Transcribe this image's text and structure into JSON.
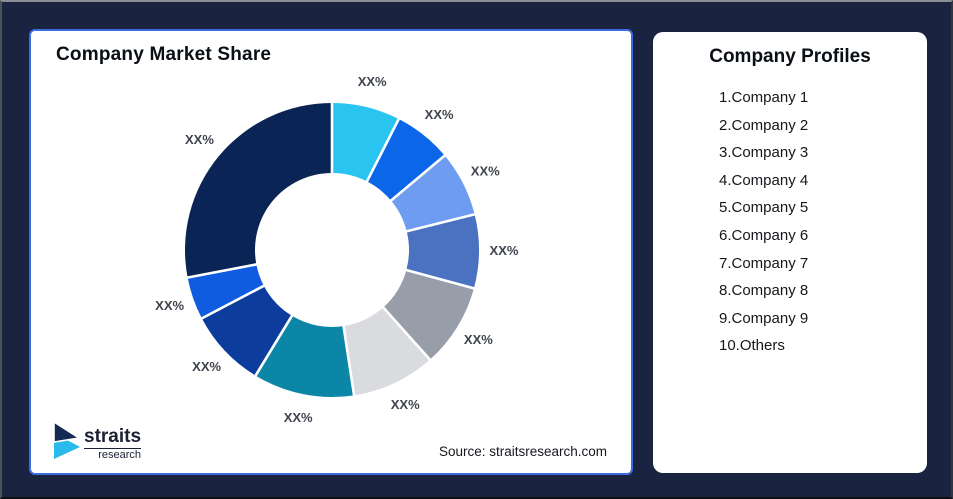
{
  "window": {
    "background": "#1a2440"
  },
  "chart_card": {
    "title": "Company Market Share",
    "source": "Source: straitsresearch.com",
    "border_color": "#3b6de0"
  },
  "logo": {
    "brand": "straits",
    "tagline": "research",
    "navy": "#132a52",
    "cyan": "#29b9ea"
  },
  "profiles_card": {
    "title": "Company Profiles",
    "items": [
      "1.Company 1",
      "2.Company 2",
      "3.Company 3",
      "4.Company 4",
      "5.Company 5",
      "6.Company 6",
      "7.Company 7",
      "8.Company 8",
      "9.Company 9",
      "10.Others"
    ]
  },
  "chart_data": {
    "type": "pie",
    "subtype": "donut",
    "title": "Company Market Share",
    "start_angle_deg": 0,
    "direction": "clockwise",
    "inner_radius_ratio": 0.52,
    "gap_color": "#ffffff",
    "label_color": "#3f434c",
    "slices": [
      {
        "label": "XX%",
        "percent_of_circle": 7.5,
        "color": "#2ac4f0"
      },
      {
        "label": "XX%",
        "percent_of_circle": 6.4,
        "color": "#0b66e8"
      },
      {
        "label": "XX%",
        "percent_of_circle": 7.2,
        "color": "#6d9cf1"
      },
      {
        "label": "XX%",
        "percent_of_circle": 8.1,
        "color": "#4a72c0"
      },
      {
        "label": "XX%",
        "percent_of_circle": 9.2,
        "color": "#979ea9"
      },
      {
        "label": "XX%",
        "percent_of_circle": 9.2,
        "color": "#d9dbdf"
      },
      {
        "label": "XX%",
        "percent_of_circle": 11.1,
        "color": "#0b86a6"
      },
      {
        "label": "XX%",
        "percent_of_circle": 8.6,
        "color": "#0c3c9c"
      },
      {
        "label": "XX%",
        "percent_of_circle": 4.7,
        "color": "#0f5ce0"
      },
      {
        "label": "XX%",
        "percent_of_circle": 28.0,
        "color": "#0a2455"
      }
    ]
  }
}
